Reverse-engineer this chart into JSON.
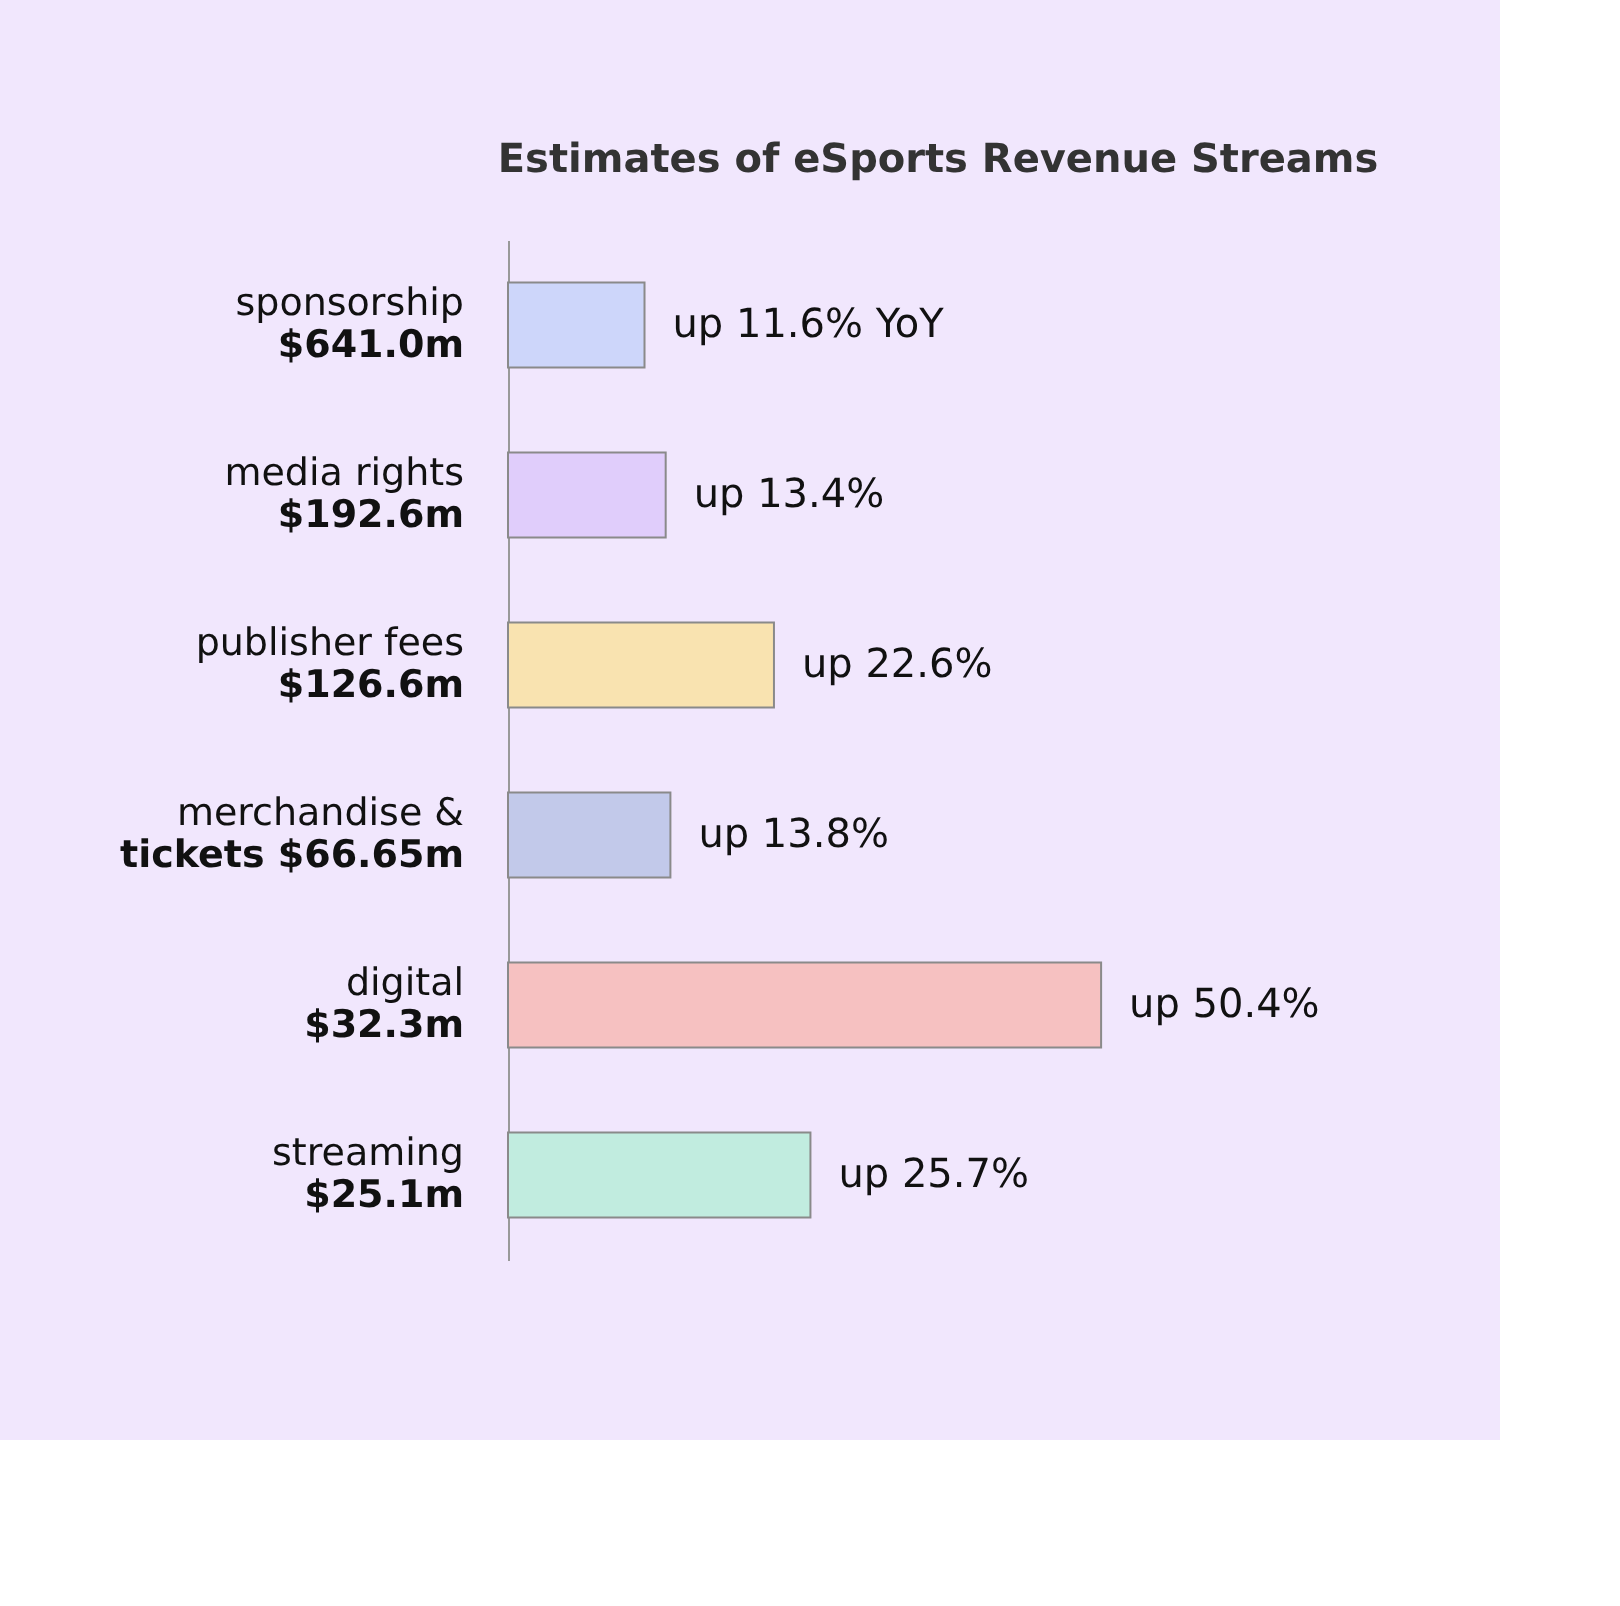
{
  "chart_data": {
    "type": "bar",
    "orientation": "horizontal",
    "title": "Estimates of eSports Revenue Streams",
    "categories": [
      "sponsorship\n$641.0m",
      "media rights\n$192.6m",
      "publisher fees\n$126.6m",
      "merchandise &\ntickets $66.65m",
      "digital\n$32.3m",
      "streaming\n$25.1m"
    ],
    "values": [
      11.6,
      13.4,
      22.6,
      13.8,
      50.4,
      25.7
    ],
    "value_labels": [
      "up 11.6% YoY",
      "up 13.4%",
      "up 22.6%",
      "up 13.8%",
      "up 50.4%",
      "up 25.7%"
    ],
    "colors": [
      "#cdd6fa",
      "#e0cdfb",
      "#f9e3b0",
      "#c2c9ea",
      "#f6c1c1",
      "#c1ecdf"
    ],
    "grid": false
  }
}
